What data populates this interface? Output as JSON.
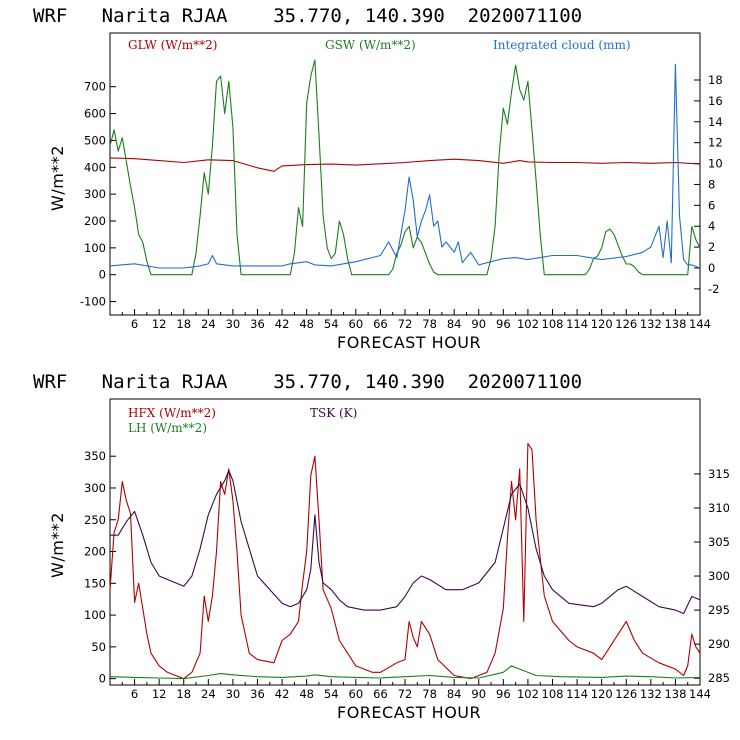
{
  "colors": {
    "red": "#b00000",
    "green": "#1a7f1a",
    "blue": "#1f6fd0",
    "purple": "#3a0a45"
  },
  "chart_data": [
    {
      "type": "line",
      "title": "WRF   Narita RJAA    35.770, 140.390  2020071100",
      "xlabel": "FORECAST HOUR",
      "ylabel": "W/m**2",
      "xlim": [
        0,
        144
      ],
      "ylim": [
        -150,
        900
      ],
      "y2lim": [
        -4.5,
        22.5
      ],
      "xticks": [
        6,
        12,
        18,
        24,
        30,
        36,
        42,
        48,
        54,
        60,
        66,
        72,
        78,
        84,
        90,
        96,
        102,
        108,
        114,
        120,
        126,
        132,
        138,
        144
      ],
      "yticks": [
        -100,
        0,
        100,
        200,
        300,
        400,
        500,
        600,
        700
      ],
      "y2ticks": [
        -2,
        0,
        2,
        4,
        6,
        8,
        10,
        12,
        14,
        16,
        18
      ],
      "series": [
        {
          "name": "GLW (W/m**2)",
          "color": "#b00000",
          "axis": "left",
          "x": [
            0,
            6,
            12,
            18,
            24,
            30,
            36,
            40,
            42,
            48,
            54,
            60,
            66,
            72,
            78,
            84,
            90,
            96,
            100,
            102,
            108,
            114,
            120,
            126,
            132,
            138,
            144
          ],
          "y": [
            435,
            432,
            425,
            418,
            428,
            425,
            398,
            385,
            405,
            410,
            412,
            408,
            413,
            418,
            425,
            430,
            425,
            415,
            425,
            420,
            418,
            418,
            415,
            418,
            415,
            418,
            412
          ]
        },
        {
          "name": "GSW (W/m**2)",
          "color": "#1a7f1a",
          "axis": "left",
          "x": [
            0,
            1,
            2,
            3,
            4,
            5,
            6,
            7,
            8,
            9,
            10,
            20,
            21,
            22,
            23,
            24,
            25,
            26,
            27,
            28,
            29,
            30,
            31,
            32,
            44,
            45,
            46,
            47,
            48,
            49,
            50,
            51,
            52,
            53,
            54,
            55,
            56,
            57,
            58,
            59,
            68,
            69,
            70,
            71,
            72,
            73,
            74,
            75,
            76,
            77,
            78,
            79,
            80,
            92,
            93,
            94,
            95,
            96,
            97,
            98,
            99,
            100,
            101,
            102,
            103,
            104,
            105,
            106,
            116,
            117,
            118,
            119,
            120,
            121,
            122,
            123,
            124,
            125,
            126,
            127,
            128,
            129,
            130,
            141,
            142,
            143,
            144
          ],
          "y": [
            480,
            540,
            460,
            510,
            420,
            330,
            250,
            150,
            120,
            50,
            0,
            0,
            80,
            220,
            380,
            300,
            480,
            720,
            740,
            600,
            720,
            550,
            150,
            0,
            0,
            80,
            250,
            180,
            640,
            740,
            800,
            520,
            220,
            100,
            60,
            80,
            200,
            150,
            60,
            0,
            0,
            20,
            80,
            110,
            160,
            180,
            100,
            140,
            120,
            80,
            40,
            10,
            0,
            0,
            60,
            180,
            450,
            620,
            560,
            680,
            780,
            690,
            650,
            720,
            540,
            350,
            150,
            0,
            0,
            20,
            60,
            70,
            100,
            160,
            170,
            150,
            110,
            70,
            40,
            40,
            30,
            10,
            0,
            0,
            180,
            130,
            100
          ]
        },
        {
          "name": "Integrated cloud (mm)",
          "color": "#1f6fd0",
          "axis": "right",
          "x": [
            0,
            6,
            12,
            18,
            22,
            24,
            25,
            26,
            30,
            42,
            44,
            48,
            50,
            54,
            60,
            66,
            68,
            70,
            72,
            73,
            74,
            75,
            76,
            77,
            78,
            79,
            80,
            81,
            82,
            84,
            85,
            86,
            88,
            90,
            93,
            96,
            99,
            102,
            108,
            114,
            120,
            126,
            130,
            132,
            134,
            135,
            136,
            137,
            138,
            139,
            140,
            141,
            142,
            144
          ],
          "y": [
            0.2,
            0.4,
            0,
            0,
            0.2,
            0.4,
            1.2,
            0.4,
            0.2,
            0.2,
            0.4,
            0.6,
            0.3,
            0.2,
            0.6,
            1.2,
            2.5,
            1.0,
            5.5,
            8.7,
            6.5,
            3.0,
            4.5,
            5.5,
            7.0,
            4.0,
            4.5,
            2.0,
            2.5,
            1.5,
            2.5,
            0.5,
            1.5,
            0.3,
            0.6,
            0.9,
            1.0,
            0.8,
            1.2,
            1.2,
            0.8,
            1.1,
            1.5,
            2.0,
            4.0,
            1.0,
            4.5,
            0.5,
            19.5,
            5.0,
            0.8,
            0.3,
            0.3,
            0
          ]
        }
      ]
    },
    {
      "type": "line",
      "title": "WRF   Narita RJAA    35.770, 140.390  2020071100",
      "xlabel": "FORECAST HOUR",
      "ylabel": "W/m**2",
      "xlim": [
        0,
        144
      ],
      "ylim": [
        -10,
        440
      ],
      "y2lim": [
        284,
        326
      ],
      "xticks": [
        6,
        12,
        18,
        24,
        30,
        36,
        42,
        48,
        54,
        60,
        66,
        72,
        78,
        84,
        90,
        96,
        102,
        108,
        114,
        120,
        126,
        132,
        138,
        144
      ],
      "yticks": [
        0,
        50,
        100,
        150,
        200,
        250,
        300,
        350
      ],
      "y2ticks": [
        285,
        290,
        295,
        300,
        305,
        310,
        315
      ],
      "series": [
        {
          "name": "HFX (W/m**2)",
          "color": "#b00000",
          "axis": "left",
          "x": [
            0,
            1,
            2,
            3,
            4,
            5,
            6,
            7,
            8,
            9,
            10,
            12,
            14,
            16,
            18,
            20,
            22,
            23,
            24,
            25,
            26,
            27,
            28,
            29,
            30,
            31,
            32,
            34,
            36,
            40,
            42,
            44,
            46,
            47,
            48,
            49,
            50,
            51,
            52,
            54,
            56,
            58,
            60,
            64,
            66,
            70,
            72,
            73,
            74,
            75,
            76,
            78,
            80,
            84,
            88,
            90,
            92,
            94,
            96,
            97,
            98,
            99,
            100,
            101,
            102,
            103,
            104,
            106,
            108,
            112,
            114,
            118,
            120,
            122,
            124,
            126,
            128,
            130,
            134,
            138,
            140,
            141,
            142,
            143,
            144
          ],
          "y": [
            140,
            230,
            250,
            310,
            280,
            260,
            120,
            150,
            110,
            70,
            40,
            20,
            10,
            5,
            0,
            10,
            40,
            130,
            90,
            130,
            200,
            310,
            290,
            330,
            280,
            200,
            100,
            40,
            30,
            25,
            60,
            70,
            90,
            150,
            200,
            320,
            350,
            250,
            140,
            110,
            60,
            40,
            20,
            10,
            10,
            25,
            30,
            90,
            65,
            50,
            90,
            70,
            30,
            5,
            0,
            5,
            10,
            40,
            110,
            220,
            310,
            250,
            330,
            90,
            370,
            360,
            250,
            130,
            90,
            60,
            50,
            40,
            30,
            50,
            70,
            90,
            60,
            40,
            25,
            15,
            5,
            20,
            70,
            50,
            40
          ]
        },
        {
          "name": "LH  (W/m**2)",
          "color": "#1a7f1a",
          "axis": "left",
          "x": [
            0,
            6,
            12,
            18,
            24,
            27,
            30,
            36,
            42,
            48,
            50,
            54,
            60,
            66,
            72,
            78,
            84,
            90,
            96,
            98,
            100,
            104,
            110,
            120,
            126,
            132,
            138,
            144
          ],
          "y": [
            3,
            2,
            1,
            0,
            5,
            8,
            6,
            3,
            2,
            4,
            6,
            3,
            2,
            1,
            3,
            5,
            2,
            1,
            10,
            20,
            15,
            5,
            3,
            2,
            4,
            3,
            1,
            2
          ]
        },
        {
          "name": "TSK (K)",
          "color": "#3a0a45",
          "axis": "right",
          "x": [
            0,
            2,
            4,
            6,
            8,
            10,
            12,
            14,
            16,
            18,
            20,
            22,
            24,
            26,
            28,
            29,
            30,
            32,
            36,
            42,
            44,
            46,
            48,
            49,
            50,
            51,
            52,
            54,
            56,
            58,
            62,
            66,
            70,
            72,
            74,
            76,
            78,
            82,
            86,
            90,
            94,
            96,
            98,
            100,
            102,
            104,
            106,
            108,
            112,
            118,
            120,
            124,
            126,
            130,
            134,
            138,
            140,
            142,
            144
          ],
          "y": [
            306,
            306,
            308,
            309.5,
            306,
            302,
            300,
            299.5,
            299,
            298.5,
            300,
            304,
            309,
            312,
            314,
            315.5,
            314,
            308,
            300,
            296,
            295.5,
            296,
            298,
            301,
            309,
            302,
            299,
            298,
            296.5,
            295.5,
            295,
            295,
            295.5,
            297,
            299,
            300,
            299.5,
            298,
            298,
            299,
            302,
            307,
            312,
            313.5,
            310,
            304,
            300,
            298,
            296,
            295.5,
            296,
            298,
            298.5,
            297,
            295.5,
            295,
            294.5,
            297,
            296.5
          ]
        }
      ]
    }
  ]
}
